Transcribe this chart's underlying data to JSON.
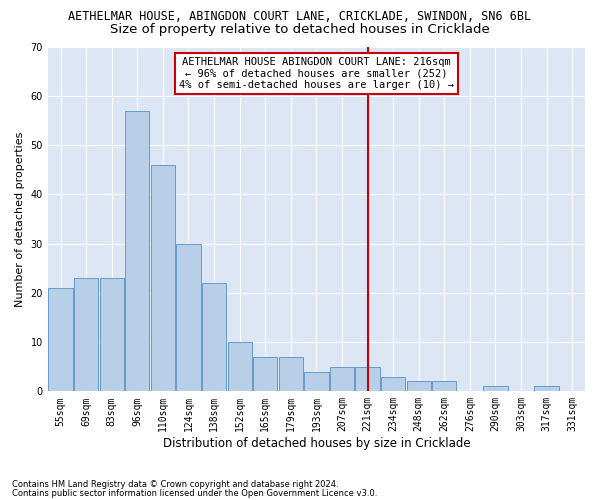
{
  "title1": "AETHELMAR HOUSE, ABINGDON COURT LANE, CRICKLADE, SWINDON, SN6 6BL",
  "title2": "Size of property relative to detached houses in Cricklade",
  "xlabel": "Distribution of detached houses by size in Cricklade",
  "ylabel": "Number of detached properties",
  "categories": [
    "55sqm",
    "69sqm",
    "83sqm",
    "96sqm",
    "110sqm",
    "124sqm",
    "138sqm",
    "152sqm",
    "165sqm",
    "179sqm",
    "193sqm",
    "207sqm",
    "221sqm",
    "234sqm",
    "248sqm",
    "262sqm",
    "276sqm",
    "290sqm",
    "303sqm",
    "317sqm",
    "331sqm"
  ],
  "values": [
    21,
    23,
    23,
    57,
    46,
    30,
    22,
    10,
    7,
    7,
    4,
    5,
    5,
    3,
    2,
    2,
    0,
    1,
    0,
    1,
    0
  ],
  "bar_color": "#b8cfe8",
  "bar_edge_color": "#6699cc",
  "vline_x": 12.0,
  "vline_color": "#cc0000",
  "annotation_title": "AETHELMAR HOUSE ABINGDON COURT LANE: 216sqm",
  "annotation_line1": "← 96% of detached houses are smaller (252)",
  "annotation_line2": "4% of semi-detached houses are larger (10) →",
  "annotation_box_color": "#ffffff",
  "annotation_box_edge": "#cc0000",
  "ylim": [
    0,
    70
  ],
  "yticks": [
    0,
    10,
    20,
    30,
    40,
    50,
    60,
    70
  ],
  "bg_color": "#dce6f5",
  "footer1": "Contains HM Land Registry data © Crown copyright and database right 2024.",
  "footer2": "Contains public sector information licensed under the Open Government Licence v3.0.",
  "title1_fontsize": 8.5,
  "title2_fontsize": 9.5,
  "xlabel_fontsize": 8.5,
  "ylabel_fontsize": 8.0,
  "tick_fontsize": 7.0,
  "footer_fontsize": 6.0,
  "ann_fontsize": 7.5
}
